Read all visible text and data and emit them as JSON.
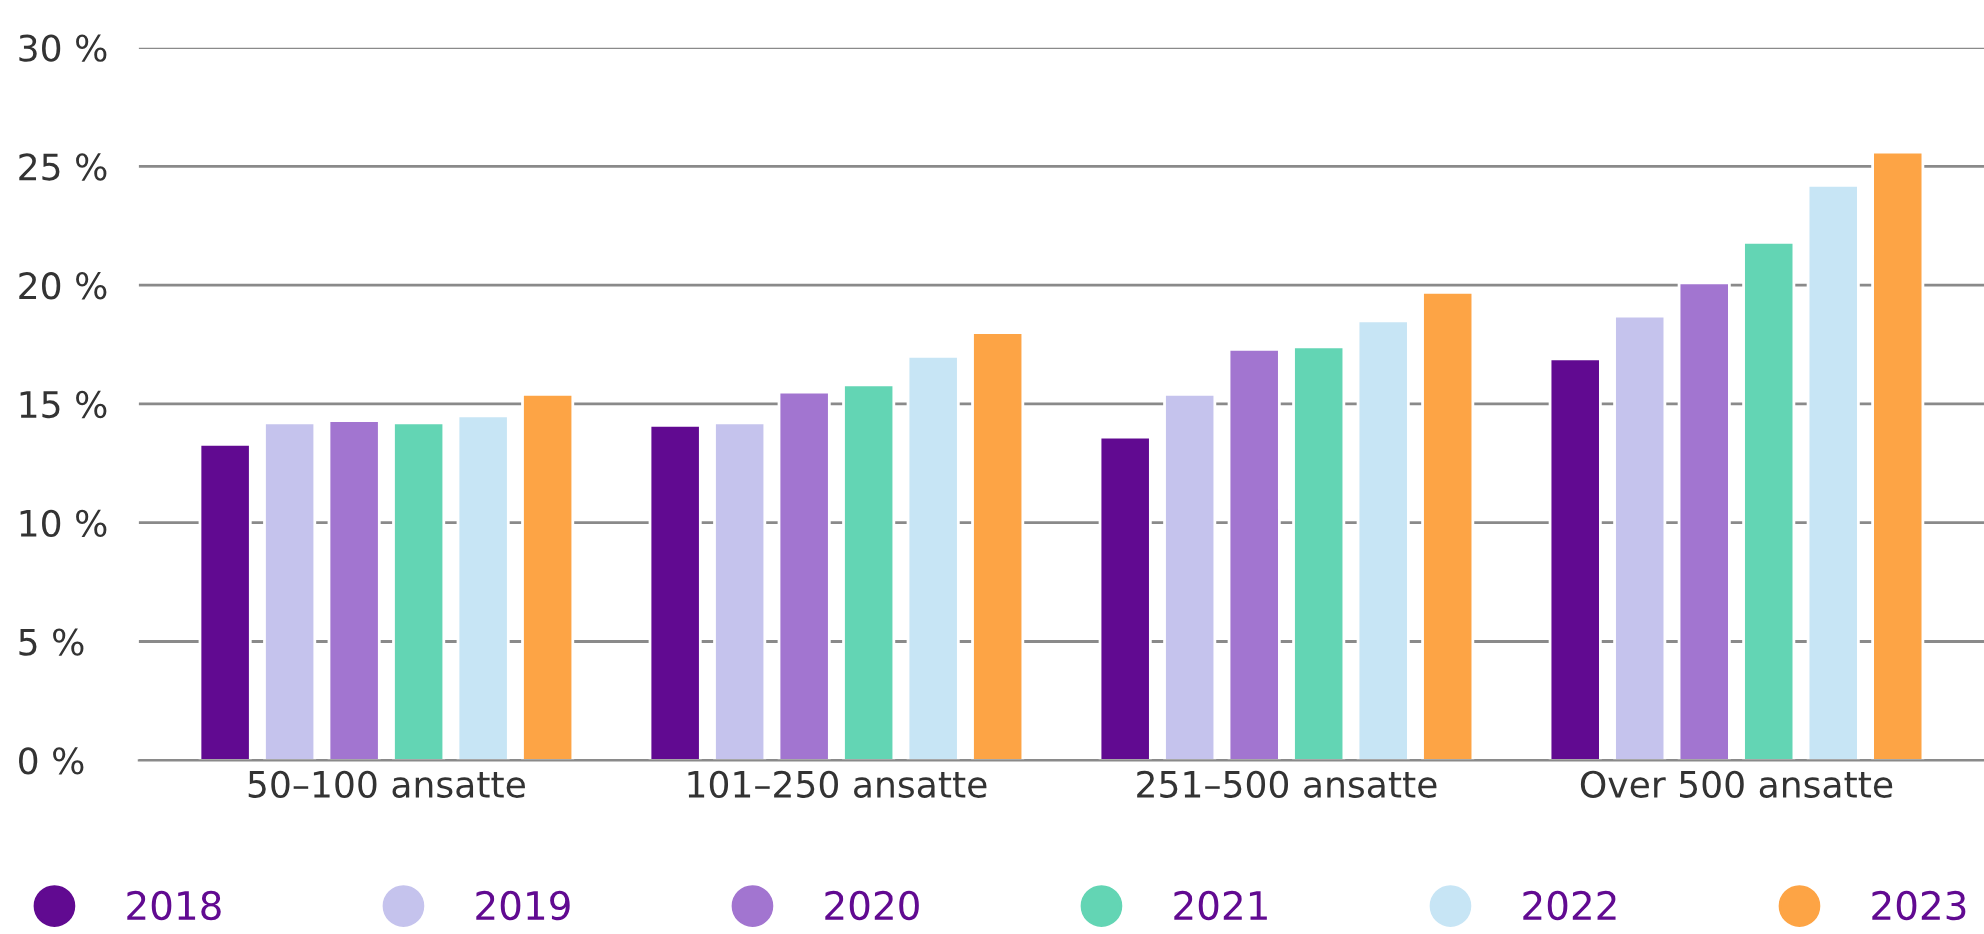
{
  "chart_data": {
    "type": "bar",
    "categories": [
      "50–100 ansatte",
      "101–250 ansatte",
      "251–500 ansatte",
      "Over 500 ansatte"
    ],
    "series": [
      {
        "name": "2018",
        "color": "#610a91",
        "values": [
          13.3,
          14.1,
          13.6,
          16.9
        ]
      },
      {
        "name": "2019",
        "color": "#c5c3ed",
        "values": [
          14.2,
          14.2,
          15.4,
          18.7
        ]
      },
      {
        "name": "2020",
        "color": "#a275d0",
        "values": [
          14.3,
          15.5,
          17.3,
          20.1
        ]
      },
      {
        "name": "2021",
        "color": "#63d5b4",
        "values": [
          14.2,
          15.8,
          17.4,
          21.8
        ]
      },
      {
        "name": "2022",
        "color": "#c7e5f5",
        "values": [
          14.5,
          17.0,
          18.5,
          24.2
        ]
      },
      {
        "name": "2023",
        "color": "#fda445",
        "values": [
          15.4,
          18.0,
          19.7,
          25.6
        ]
      }
    ],
    "ylim": [
      0,
      30
    ],
    "yticks": [
      {
        "value": 0,
        "label": "0 %"
      },
      {
        "value": 5,
        "label": "5 %"
      },
      {
        "value": 10,
        "label": "10 %"
      },
      {
        "value": 15,
        "label": "15 %"
      },
      {
        "value": 20,
        "label": "20 %"
      },
      {
        "value": 25,
        "label": "25 %"
      },
      {
        "value": 30,
        "label": "30 %"
      }
    ],
    "grid": "y",
    "legend": "bottom",
    "marker": "circle"
  }
}
